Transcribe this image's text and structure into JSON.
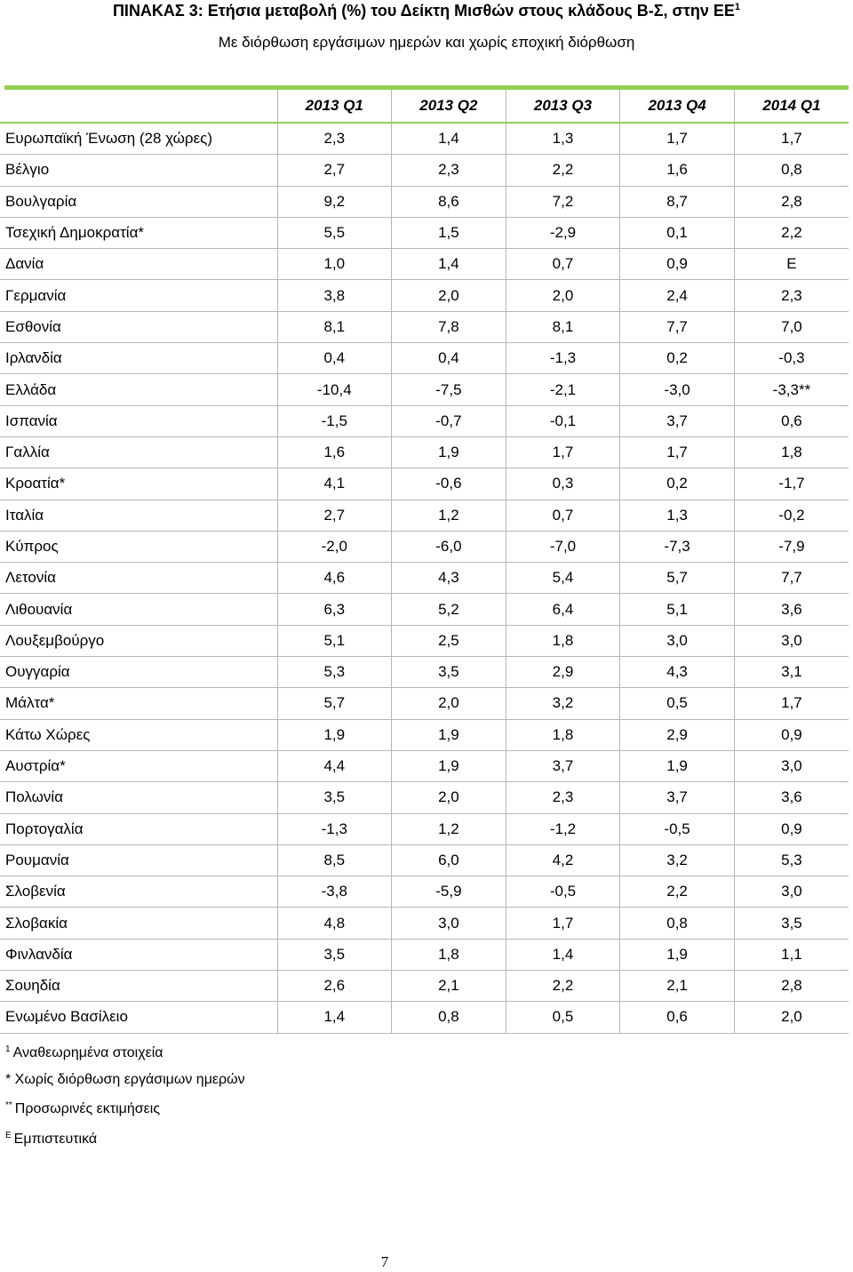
{
  "title": {
    "text": "ΠΙΝΑΚΑΣ 3: Ετήσια μεταβολή (%) του Δείκτη Μισθών στους κλάδους Β-Σ, στην ΕΕ",
    "sup": "1"
  },
  "subtitle": "Με διόρθωση εργάσιμων ημερών και χωρίς εποχική διόρθωση",
  "colors": {
    "accent_rule": "#92d050",
    "grid": "#b7b7b7"
  },
  "table": {
    "headers": [
      "2013  Q1",
      "2013  Q2",
      "2013  Q3",
      "2013  Q4",
      "2014  Q1"
    ],
    "rows": [
      {
        "country": "Ευρωπαϊκή Ένωση (28 χώρες)",
        "values": [
          "2,3",
          "1,4",
          "1,3",
          "1,7",
          "1,7"
        ]
      },
      {
        "country": "Βέλγιο",
        "values": [
          "2,7",
          "2,3",
          "2,2",
          "1,6",
          "0,8"
        ]
      },
      {
        "country": "Βουλγαρία",
        "values": [
          "9,2",
          "8,6",
          "7,2",
          "8,7",
          "2,8"
        ]
      },
      {
        "country": "Τσεχική Δημοκρατία*",
        "values": [
          "5,5",
          "1,5",
          "-2,9",
          "0,1",
          "2,2"
        ]
      },
      {
        "country": "Δανία",
        "values": [
          "1,0",
          "1,4",
          "0,7",
          "0,9",
          "E"
        ]
      },
      {
        "country": "Γερμανία",
        "values": [
          "3,8",
          "2,0",
          "2,0",
          "2,4",
          "2,3"
        ]
      },
      {
        "country": "Εσθονία",
        "values": [
          "8,1",
          "7,8",
          "8,1",
          "7,7",
          "7,0"
        ]
      },
      {
        "country": "Ιρλανδία",
        "values": [
          "0,4",
          "0,4",
          "-1,3",
          "0,2",
          "-0,3"
        ]
      },
      {
        "country": "Ελλάδα",
        "values": [
          "-10,4",
          "-7,5",
          "-2,1",
          "-3,0",
          "-3,3**"
        ]
      },
      {
        "country": "Ισπανία",
        "values": [
          "-1,5",
          "-0,7",
          "-0,1",
          "3,7",
          "0,6"
        ]
      },
      {
        "country": "Γαλλία",
        "values": [
          "1,6",
          "1,9",
          "1,7",
          "1,7",
          "1,8"
        ]
      },
      {
        "country": "Κροατία*",
        "values": [
          "4,1",
          "-0,6",
          "0,3",
          "0,2",
          "-1,7"
        ]
      },
      {
        "country": "Ιταλία",
        "values": [
          "2,7",
          "1,2",
          "0,7",
          "1,3",
          "-0,2"
        ]
      },
      {
        "country": "Κύπρος",
        "values": [
          "-2,0",
          "-6,0",
          "-7,0",
          "-7,3",
          "-7,9"
        ]
      },
      {
        "country": "Λετονία",
        "values": [
          "4,6",
          "4,3",
          "5,4",
          "5,7",
          "7,7"
        ]
      },
      {
        "country": "Λιθουανία",
        "values": [
          "6,3",
          "5,2",
          "6,4",
          "5,1",
          "3,6"
        ]
      },
      {
        "country": "Λουξεμβούργο",
        "values": [
          "5,1",
          "2,5",
          "1,8",
          "3,0",
          "3,0"
        ]
      },
      {
        "country": "Ουγγαρία",
        "values": [
          "5,3",
          "3,5",
          "2,9",
          "4,3",
          "3,1"
        ]
      },
      {
        "country": "Μάλτα*",
        "values": [
          "5,7",
          "2,0",
          "3,2",
          "0,5",
          "1,7"
        ]
      },
      {
        "country": "Κάτω Χώρες",
        "values": [
          "1,9",
          "1,9",
          "1,8",
          "2,9",
          "0,9"
        ]
      },
      {
        "country": "Αυστρία*",
        "values": [
          "4,4",
          "1,9",
          "3,7",
          "1,9",
          "3,0"
        ]
      },
      {
        "country": "Πολωνία",
        "values": [
          "3,5",
          "2,0",
          "2,3",
          "3,7",
          "3,6"
        ]
      },
      {
        "country": "Πορτογαλία",
        "values": [
          "-1,3",
          "1,2",
          "-1,2",
          "-0,5",
          "0,9"
        ]
      },
      {
        "country": "Ρουμανία",
        "values": [
          "8,5",
          "6,0",
          "4,2",
          "3,2",
          "5,3"
        ]
      },
      {
        "country": "Σλοβενία",
        "values": [
          "-3,8",
          "-5,9",
          "-0,5",
          "2,2",
          "3,0"
        ]
      },
      {
        "country": "Σλοβακία",
        "values": [
          "4,8",
          "3,0",
          "1,7",
          "0,8",
          "3,5"
        ]
      },
      {
        "country": "Φινλανδία",
        "values": [
          "3,5",
          "1,8",
          "1,4",
          "1,9",
          "1,1"
        ]
      },
      {
        "country": "Σουηδία",
        "values": [
          "2,6",
          "2,1",
          "2,2",
          "2,1",
          "2,8"
        ]
      },
      {
        "country": "Ενωμένο Βασίλειο",
        "values": [
          "1,4",
          "0,8",
          "0,5",
          "0,6",
          "2,0"
        ]
      }
    ]
  },
  "notes": [
    {
      "mark": "1",
      "text": "Αναθεωρημένα στοιχεία"
    },
    {
      "mark": "",
      "text": "* Χωρίς διόρθωση εργάσιμων ημερών"
    },
    {
      "mark": "**",
      "text": "Προσωρινές εκτιμήσεις"
    },
    {
      "mark": "E",
      "text": "Εμπιστευτικά"
    }
  ],
  "page_number": "7"
}
